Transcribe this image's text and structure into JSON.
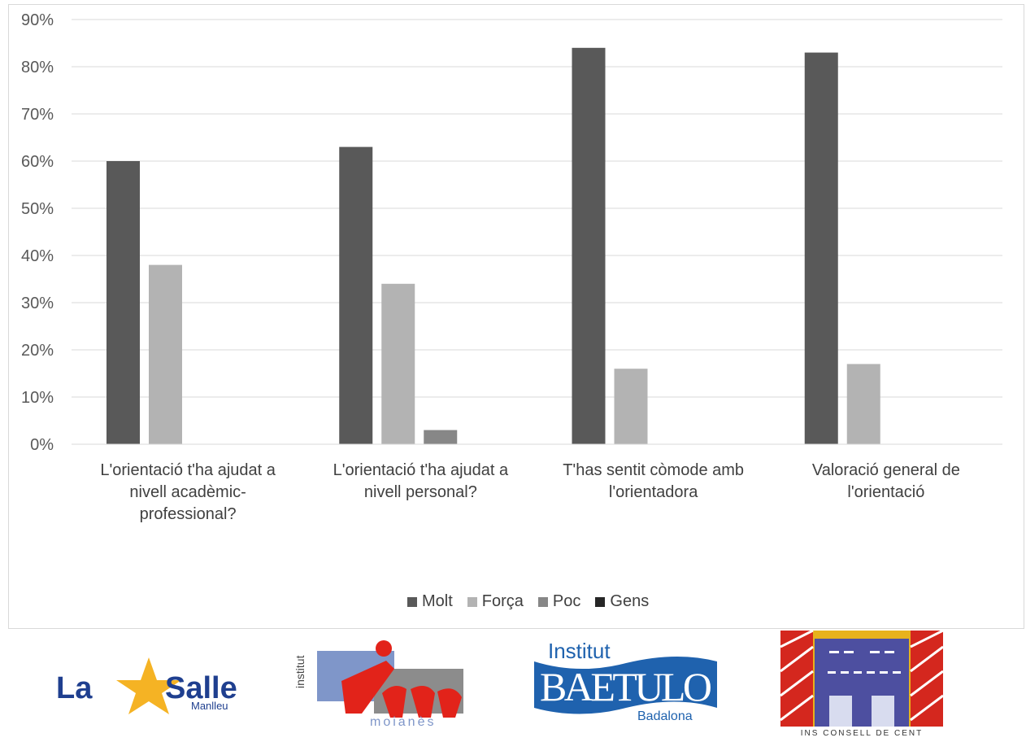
{
  "chart_data": {
    "type": "bar",
    "categories": [
      "L'orientació t'ha ajudat a nivell acadèmic-professional?",
      "L'orientació t'ha ajudat a nivell personal?",
      "T'has sentit còmode amb l'orientadora",
      "Valoració general de l'orientació"
    ],
    "series": [
      {
        "name": "Molt",
        "color": "#595959",
        "values": [
          60,
          63,
          84,
          83
        ]
      },
      {
        "name": "Força",
        "color": "#b3b3b3",
        "values": [
          38,
          34,
          16,
          17
        ]
      },
      {
        "name": "Poc",
        "color": "#878787",
        "values": [
          0,
          3,
          0,
          0
        ]
      },
      {
        "name": "Gens",
        "color": "#262626",
        "values": [
          0,
          0,
          0,
          0
        ]
      }
    ],
    "yticks": [
      "0%",
      "10%",
      "20%",
      "30%",
      "40%",
      "50%",
      "60%",
      "70%",
      "80%",
      "90%"
    ],
    "ylim": [
      0,
      90
    ],
    "grid": true,
    "legend_position": "bottom"
  },
  "logos": {
    "lasalle": {
      "word1": "La",
      "word2": "Salle",
      "sub": "Manlleu"
    },
    "moianes": {
      "side": "institut",
      "sub": "moianès"
    },
    "baetulo": {
      "top": "Institut",
      "main": "BAETULO",
      "sub": "Badalona"
    },
    "consell": {
      "caption": "INS CONSELL DE CENT"
    }
  }
}
